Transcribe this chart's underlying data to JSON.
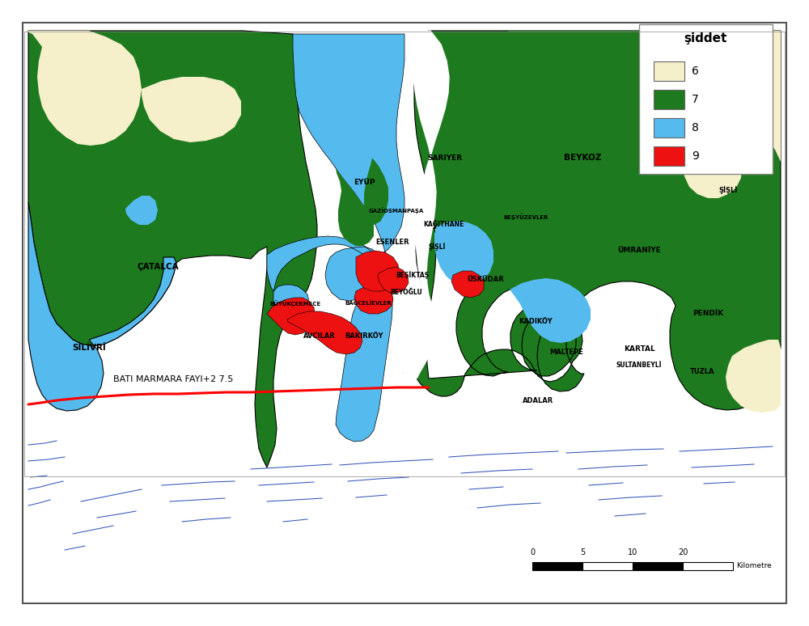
{
  "legend_title": "şiddet",
  "legend_items": [
    {
      "label": "6",
      "color": "#F5EFCA"
    },
    {
      "label": "7",
      "color": "#1E7A1E"
    },
    {
      "label": "8",
      "color": "#55BBEE"
    },
    {
      "label": "9",
      "color": "#EE1111"
    }
  ],
  "fault_label": "BATI MARMARA FAYI+2 7.5",
  "scale_label": "Kilometre",
  "scale_ticks": [
    "0",
    "5",
    "10",
    "20"
  ],
  "background_color": "#FFFFFF",
  "border_color": "#888888",
  "figsize": [
    10.0,
    7.74
  ],
  "dpi": 100
}
